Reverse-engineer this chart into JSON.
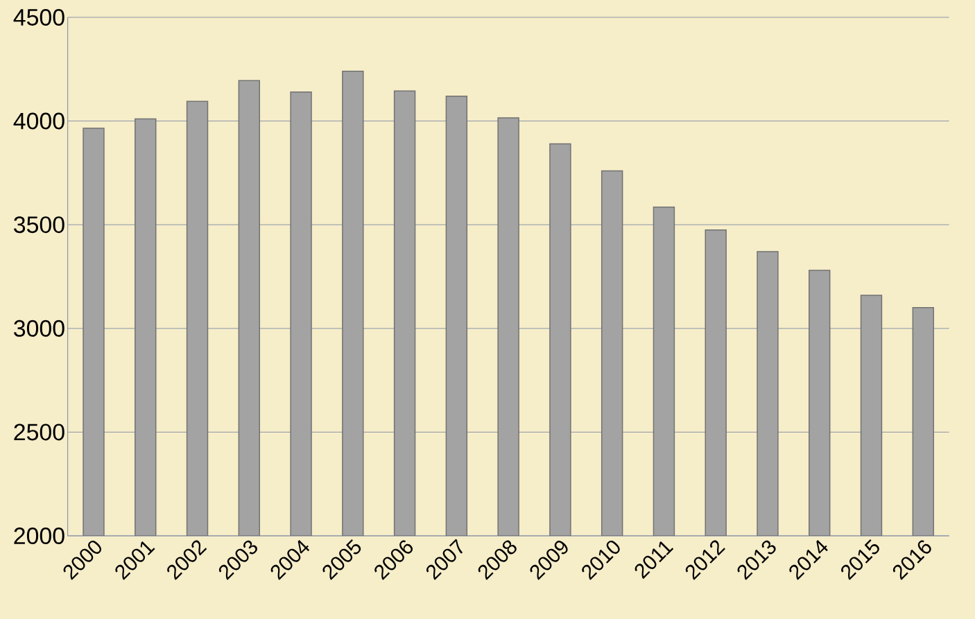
{
  "chart_data": {
    "type": "bar",
    "categories": [
      "2000",
      "2001",
      "2002",
      "2003",
      "2004",
      "2005",
      "2006",
      "2007",
      "2008",
      "2009",
      "2010",
      "2011",
      "2012",
      "2013",
      "2014",
      "2015",
      "2016"
    ],
    "values": [
      3965,
      4010,
      4095,
      4195,
      4140,
      4240,
      4145,
      4120,
      4015,
      3890,
      3760,
      3585,
      3475,
      3370,
      3280,
      3160,
      3100
    ],
    "color": "#a3a3a3",
    "ylim": [
      2000,
      4500
    ],
    "yticks": [
      2000,
      2500,
      3000,
      3500,
      4000,
      4500
    ],
    "grid": "y"
  }
}
